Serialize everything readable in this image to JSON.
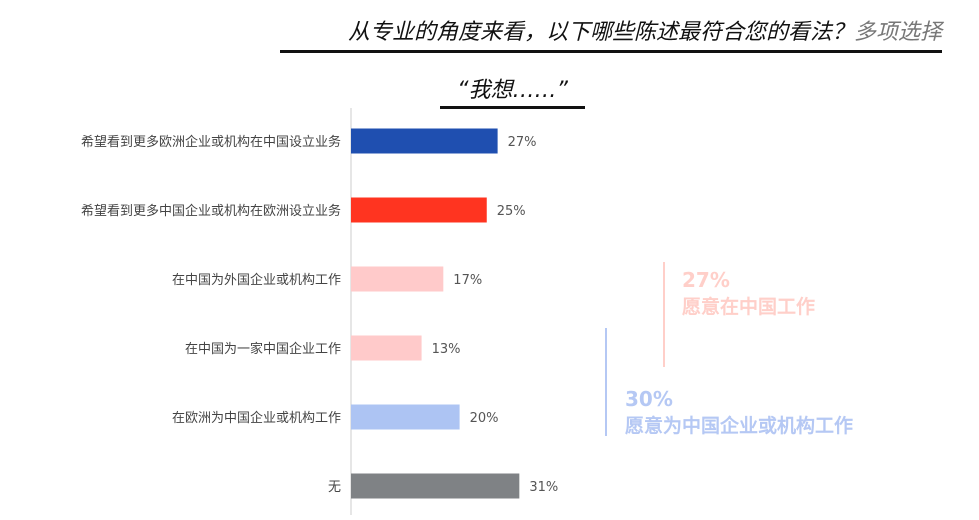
{
  "header": {
    "title": "从专业的角度来看，以下哪些陈述最符合您的看法？",
    "title_note": "多项选择",
    "subtitle": "“我想……”"
  },
  "chart_data": {
    "type": "bar",
    "orientation": "horizontal",
    "categories": [
      "希望看到更多欧洲企业或机构在中国设立业务",
      "希望看到更多中国企业或机构在欧洲设立业务",
      "在中国为外国企业或机构工作",
      "在中国为一家中国企业工作",
      "在欧洲为中国企业或机构工作",
      "无"
    ],
    "values": [
      27,
      25,
      17,
      13,
      20,
      31
    ],
    "value_labels": [
      "27%",
      "25%",
      "17%",
      "13%",
      "20%",
      "31%"
    ],
    "colors": [
      "#1f4fb0",
      "#ff3420",
      "#ffcaca",
      "#ffcaca",
      "#adc4f3",
      "#7f8285"
    ],
    "xlim": [
      0,
      35
    ],
    "grid": false,
    "annotations": [
      {
        "value": "27%",
        "label": "愿意在中国工作",
        "color": "#ffcfc9"
      },
      {
        "value": "30%",
        "label": "愿意为中国企业或机构工作",
        "color": "#b5c8f4"
      }
    ]
  }
}
